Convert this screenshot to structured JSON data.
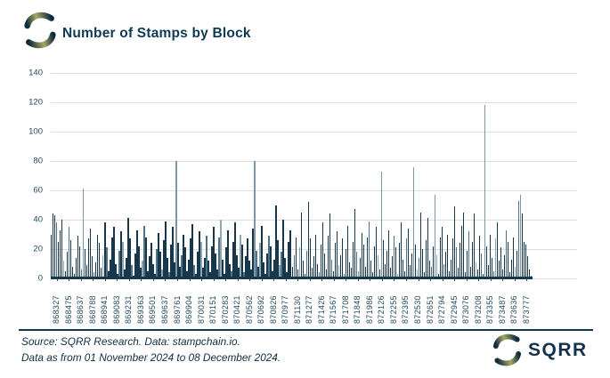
{
  "header": {
    "title": "Number of Stamps by Block"
  },
  "footer": {
    "source_line": "Source: SQRR Research. Data: stampchain.io.",
    "date_line": "Data as from 01 November 2024 to 08 December 2024.",
    "brand": "SQRR"
  },
  "colors": {
    "title": "#0e3a52",
    "bar_dark": "#17384c",
    "bar_mid": "#4e7287",
    "bar_light": "#8fa6b0",
    "bar_tall": "#7e97a6",
    "grid": "#dcdedf",
    "axis_text": "#26485b",
    "baseline": "#16384c",
    "footer_text": "#0f2f40",
    "logo_navy": "#0f2c3c",
    "logo_olive": "#a8a865"
  },
  "chart_data": {
    "type": "bar",
    "title": "Number of Stamps by Block",
    "xlabel": "",
    "ylabel": "",
    "ylim": [
      0,
      140
    ],
    "yticks": [
      0,
      20,
      40,
      60,
      80,
      100,
      120,
      140
    ],
    "grid": "horizontal",
    "legend": "none",
    "x_tick_labels": [
      "868327",
      "868475",
      "868637",
      "868788",
      "868941",
      "869083",
      "869231",
      "869363",
      "869501",
      "869637",
      "869761",
      "869904",
      "870031",
      "870151",
      "870283",
      "870421",
      "870562",
      "870692",
      "870826",
      "870977",
      "871130",
      "871277",
      "871426",
      "871567",
      "871708",
      "871848",
      "871986",
      "872126",
      "872255",
      "872395",
      "872530",
      "872651",
      "872794",
      "872945",
      "873076",
      "873208",
      "873355",
      "873487",
      "873636",
      "873777"
    ],
    "values": [
      30,
      44,
      43,
      38,
      25,
      33,
      40,
      12,
      5,
      18,
      35,
      26,
      8,
      3,
      14,
      29,
      22,
      6,
      61,
      20,
      9,
      27,
      34,
      15,
      4,
      11,
      30,
      24,
      7,
      16,
      38,
      21,
      5,
      13,
      28,
      35,
      10,
      3,
      19,
      32,
      25,
      6,
      14,
      41,
      27,
      9,
      2,
      17,
      33,
      22,
      7,
      12,
      36,
      28,
      5,
      15,
      24,
      10,
      3,
      20,
      31,
      18,
      6,
      26,
      39,
      14,
      4,
      23,
      35,
      11,
      80,
      24,
      8,
      16,
      30,
      21,
      5,
      13,
      27,
      37,
      9,
      3,
      18,
      32,
      25,
      7,
      14,
      29,
      12,
      4,
      22,
      35,
      17,
      6,
      28,
      40,
      13,
      3,
      21,
      33,
      10,
      5,
      25,
      38,
      16,
      7,
      30,
      23,
      4,
      15,
      27,
      12,
      6,
      34,
      80,
      19,
      8,
      24,
      36,
      11,
      3,
      17,
      29,
      22,
      5,
      13,
      50,
      26,
      9,
      18,
      40,
      14,
      4,
      25,
      33,
      8,
      16,
      28,
      6,
      21,
      45,
      12,
      3,
      19,
      52,
      27,
      7,
      15,
      30,
      10,
      4,
      23,
      38,
      17,
      6,
      29,
      44,
      13,
      5,
      24,
      32,
      9,
      16,
      27,
      3,
      20,
      36,
      11,
      7,
      25,
      47,
      18,
      5,
      14,
      31,
      23,
      8,
      28,
      39,
      12,
      4,
      22,
      35,
      16,
      6,
      73,
      26,
      10,
      19,
      33,
      7,
      15,
      29,
      21,
      3,
      24,
      38,
      13,
      5,
      27,
      34,
      9,
      17,
      76,
      23,
      6,
      14,
      45,
      20,
      4,
      26,
      41,
      12,
      8,
      22,
      57,
      16,
      3,
      28,
      35,
      10,
      18,
      30,
      5,
      13,
      27,
      49,
      21,
      7,
      24,
      36,
      45,
      4,
      19,
      32,
      8,
      25,
      44,
      11,
      6,
      29,
      17,
      3,
      118,
      22,
      9,
      30,
      14,
      5,
      27,
      38,
      12,
      21,
      6,
      16,
      33,
      25,
      4,
      13,
      28,
      8,
      19,
      53,
      57,
      44,
      25,
      23,
      15,
      6,
      2
    ]
  }
}
